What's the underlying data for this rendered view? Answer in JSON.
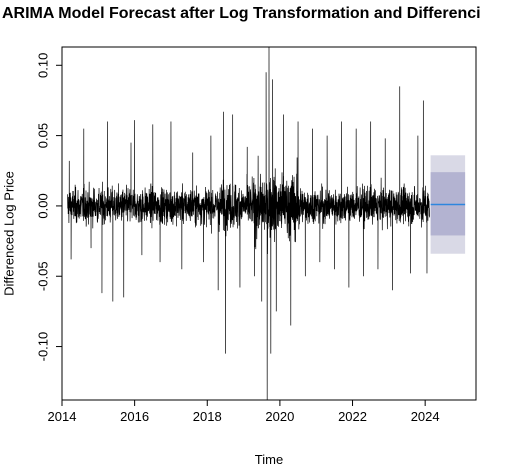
{
  "chart_data": {
    "type": "line",
    "title": "ARIMA Model Forecast after Log Transformation and Differenci",
    "xlabel": "Time",
    "ylabel": "Differenced Log Price",
    "xlim": [
      2014,
      2025.4
    ],
    "ylim": [
      -0.138,
      0.113
    ],
    "grid": false,
    "legend": "none",
    "x_ticks": [
      2014,
      2016,
      2018,
      2020,
      2022,
      2024
    ],
    "y_ticks": [
      -0.1,
      -0.05,
      0.0,
      0.05,
      0.1
    ],
    "y_tick_labels": [
      "-0.10",
      "-0.05",
      "0.00",
      "0.05",
      "0.10"
    ],
    "x_tick_labels": [
      "2014",
      "2016",
      "2018",
      "2020",
      "2022",
      "2024"
    ],
    "series": [
      {
        "role": "observed",
        "color": "#000000",
        "x_start": 2014.15,
        "x_end": 2024.12,
        "baseline": 0.0,
        "spikes": [
          {
            "x": 2014.2,
            "y": 0.032
          },
          {
            "x": 2014.25,
            "y": -0.038
          },
          {
            "x": 2014.6,
            "y": 0.055
          },
          {
            "x": 2014.8,
            "y": -0.03
          },
          {
            "x": 2015.1,
            "y": -0.062
          },
          {
            "x": 2015.25,
            "y": 0.06
          },
          {
            "x": 2015.4,
            "y": -0.068
          },
          {
            "x": 2015.7,
            "y": -0.065
          },
          {
            "x": 2015.9,
            "y": 0.045
          },
          {
            "x": 2016.0,
            "y": 0.061
          },
          {
            "x": 2016.2,
            "y": -0.035
          },
          {
            "x": 2016.5,
            "y": 0.058
          },
          {
            "x": 2016.7,
            "y": -0.04
          },
          {
            "x": 2017.0,
            "y": 0.06
          },
          {
            "x": 2017.3,
            "y": -0.045
          },
          {
            "x": 2017.6,
            "y": 0.038
          },
          {
            "x": 2017.9,
            "y": -0.04
          },
          {
            "x": 2018.1,
            "y": 0.05
          },
          {
            "x": 2018.3,
            "y": -0.06
          },
          {
            "x": 2018.45,
            "y": 0.067
          },
          {
            "x": 2018.5,
            "y": -0.105
          },
          {
            "x": 2018.7,
            "y": 0.065
          },
          {
            "x": 2018.9,
            "y": -0.058
          },
          {
            "x": 2019.1,
            "y": 0.042
          },
          {
            "x": 2019.3,
            "y": -0.05
          },
          {
            "x": 2019.5,
            "y": -0.068
          },
          {
            "x": 2019.62,
            "y": 0.095
          },
          {
            "x": 2019.65,
            "y": -0.138
          },
          {
            "x": 2019.7,
            "y": 0.113
          },
          {
            "x": 2019.75,
            "y": -0.105
          },
          {
            "x": 2019.8,
            "y": 0.09
          },
          {
            "x": 2019.9,
            "y": -0.075
          },
          {
            "x": 2020.1,
            "y": 0.065
          },
          {
            "x": 2020.3,
            "y": -0.085
          },
          {
            "x": 2020.5,
            "y": 0.06
          },
          {
            "x": 2020.7,
            "y": -0.05
          },
          {
            "x": 2020.9,
            "y": 0.055
          },
          {
            "x": 2021.1,
            "y": -0.04
          },
          {
            "x": 2021.3,
            "y": 0.05
          },
          {
            "x": 2021.5,
            "y": -0.045
          },
          {
            "x": 2021.7,
            "y": 0.06
          },
          {
            "x": 2021.9,
            "y": -0.058
          },
          {
            "x": 2022.1,
            "y": 0.055
          },
          {
            "x": 2022.3,
            "y": -0.05
          },
          {
            "x": 2022.5,
            "y": 0.06
          },
          {
            "x": 2022.7,
            "y": -0.045
          },
          {
            "x": 2022.9,
            "y": 0.048
          },
          {
            "x": 2023.1,
            "y": -0.06
          },
          {
            "x": 2023.3,
            "y": 0.085
          },
          {
            "x": 2023.6,
            "y": -0.048
          },
          {
            "x": 2023.8,
            "y": 0.05
          },
          {
            "x": 2023.95,
            "y": 0.075
          },
          {
            "x": 2024.05,
            "y": -0.048
          }
        ]
      },
      {
        "role": "forecast",
        "color": "#2e86de",
        "x": [
          2024.15,
          2025.1
        ],
        "y": [
          0.001,
          0.001
        ]
      }
    ],
    "intervals": [
      {
        "level": "outer",
        "color": "#d9d9e6",
        "x": [
          2024.15,
          2025.1
        ],
        "lower": -0.034,
        "upper": 0.036
      },
      {
        "level": "inner",
        "color": "#b3b3d1",
        "x": [
          2024.15,
          2025.1
        ],
        "lower": -0.021,
        "upper": 0.024
      }
    ]
  }
}
